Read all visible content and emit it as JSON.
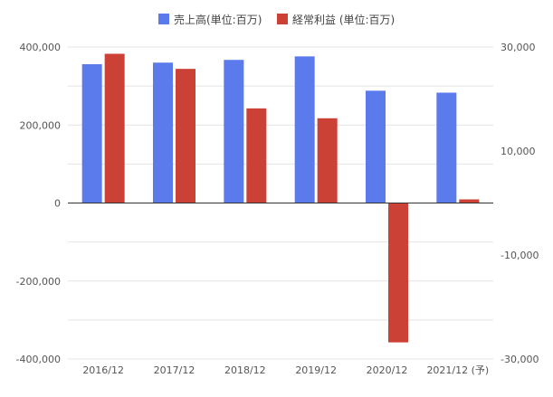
{
  "chart_data": {
    "type": "bar",
    "categories": [
      "2016/12",
      "2017/12",
      "2018/12",
      "2019/12",
      "2020/12",
      "2021/12 (予)"
    ],
    "series": [
      {
        "name": "売上高(単位:百万)",
        "axis": "left",
        "color": "#5b7bec",
        "values": [
          356000,
          360000,
          367000,
          376000,
          288000,
          283000
        ]
      },
      {
        "name": "経常利益 (単位:百万)",
        "axis": "right",
        "color": "#cc4136",
        "values": [
          28700,
          25800,
          18200,
          16300,
          -26800,
          700
        ]
      }
    ],
    "left_axis": {
      "ylim": [
        -400000,
        400000
      ],
      "ticks": [
        400000,
        200000,
        0,
        -200000,
        -400000
      ],
      "tick_labels": [
        "400,000",
        "200,000",
        "0",
        "-200,000",
        "-400,000"
      ]
    },
    "right_axis": {
      "ylim": [
        -30000,
        30000
      ],
      "ticks": [
        30000,
        10000,
        -10000,
        -30000
      ],
      "tick_labels": [
        "30,000",
        "10,000",
        "-10,000",
        "-30,000"
      ]
    },
    "grid": true,
    "legend_position": "top-center",
    "title": "",
    "xlabel": "",
    "ylabel": ""
  }
}
